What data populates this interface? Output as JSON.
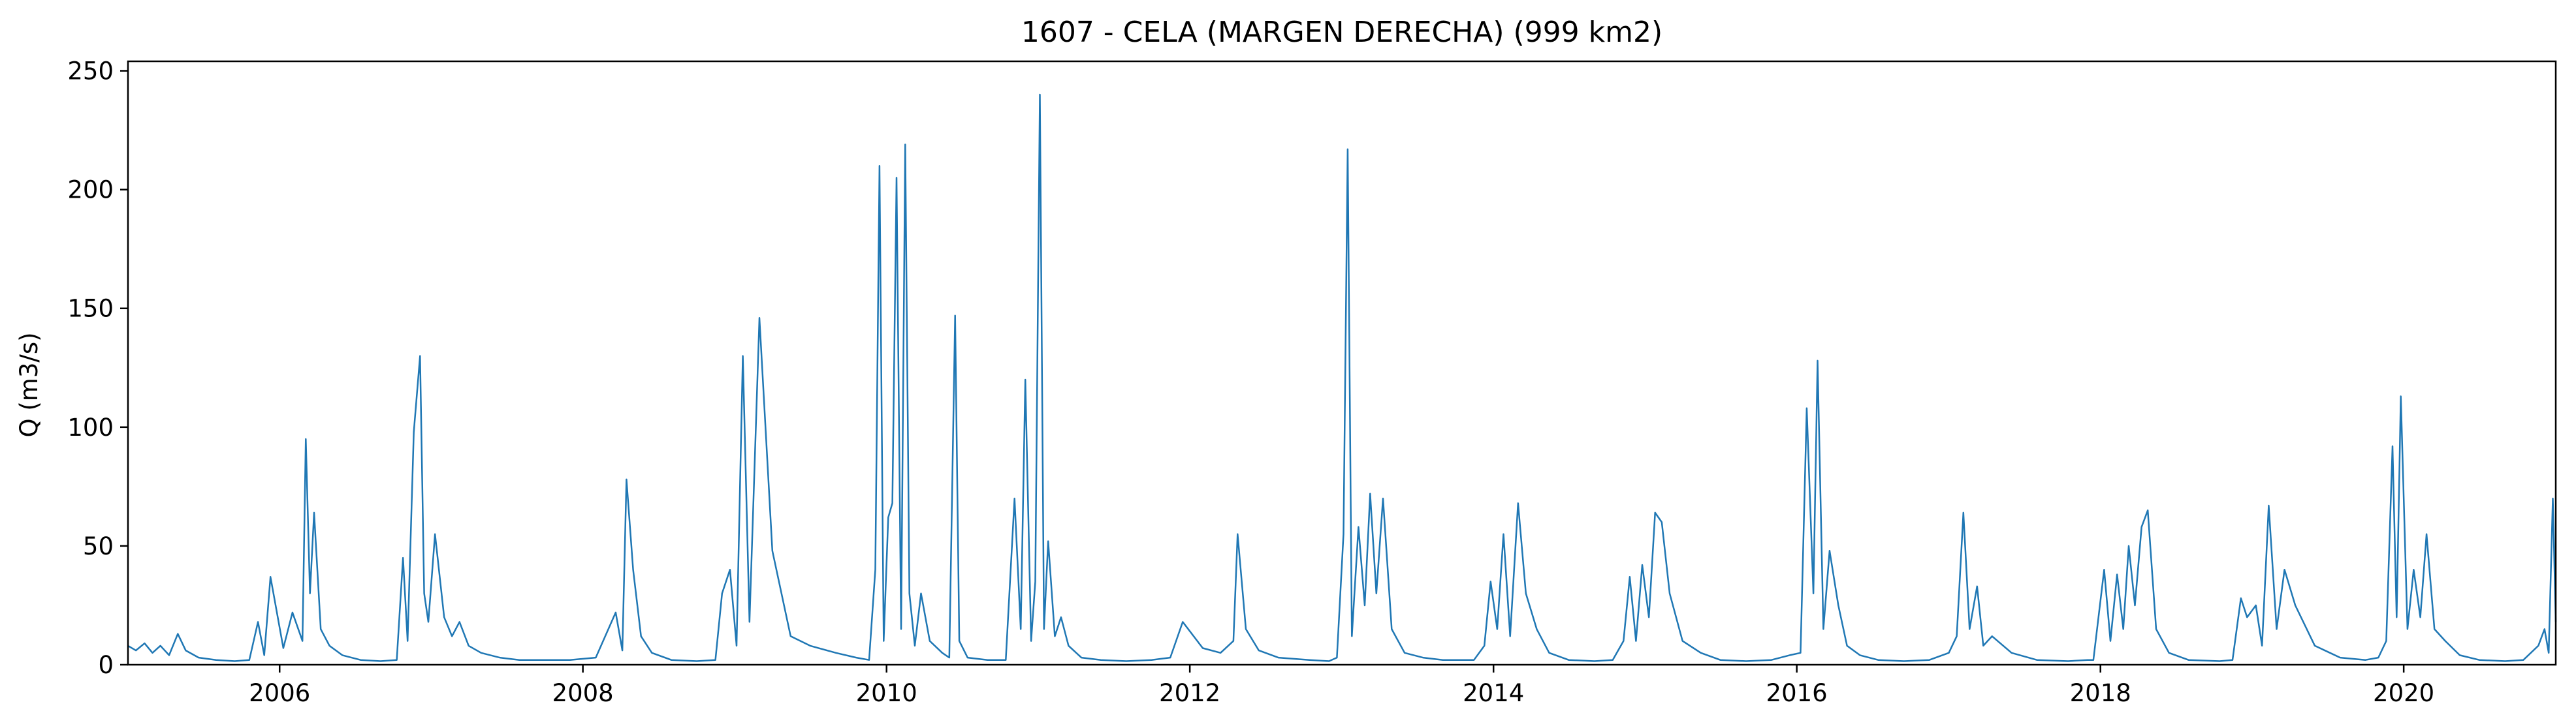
{
  "chart_data": {
    "type": "line",
    "title": "1607 - CELA (MARGEN DERECHA) (999 km2)",
    "xlabel": "",
    "ylabel": "Q (m3/s)",
    "xlim": [
      "2005-01-01",
      "2021-01-01"
    ],
    "ylim": [
      0,
      254
    ],
    "x_ticks": [
      "2006",
      "2008",
      "2010",
      "2012",
      "2014",
      "2016",
      "2018",
      "2020"
    ],
    "y_ticks": [
      "0",
      "50",
      "100",
      "150",
      "200",
      "250"
    ],
    "grid": false,
    "legend": "none",
    "color": "#1f77b4",
    "series": [
      {
        "x": [
          "2005-01-01",
          "2005-01-20",
          "2005-02-10",
          "2005-03-01",
          "2005-03-20",
          "2005-04-10",
          "2005-05-01",
          "2005-05-20",
          "2005-06-20",
          "2005-08-01",
          "2005-09-15",
          "2005-10-20",
          "2005-11-10",
          "2005-11-25",
          "2005-12-10",
          "2006-01-10",
          "2006-02-01",
          "2006-02-25",
          "2006-03-05",
          "2006-03-15",
          "2006-03-25",
          "2006-04-10",
          "2006-05-01",
          "2006-06-01",
          "2006-07-15",
          "2006-09-01",
          "2006-10-10",
          "2006-10-25",
          "2006-11-05",
          "2006-11-20",
          "2006-12-05",
          "2006-12-15",
          "2006-12-25",
          "2007-01-10",
          "2007-02-01",
          "2007-02-20",
          "2007-03-10",
          "2007-04-01",
          "2007-05-01",
          "2007-06-15",
          "2007-08-01",
          "2007-10-01",
          "2007-12-01",
          "2008-02-01",
          "2008-03-20",
          "2008-04-05",
          "2008-04-15",
          "2008-05-01",
          "2008-05-20",
          "2008-06-15",
          "2008-08-01",
          "2008-10-01",
          "2008-11-15",
          "2008-12-01",
          "2008-12-20",
          "2009-01-05",
          "2009-01-20",
          "2009-02-05",
          "2009-03-01",
          "2009-04-01",
          "2009-05-15",
          "2009-07-01",
          "2009-09-01",
          "2009-10-20",
          "2009-11-20",
          "2009-12-05",
          "2009-12-15",
          "2009-12-25",
          "2010-01-05",
          "2010-01-15",
          "2010-01-25",
          "2010-02-05",
          "2010-02-15",
          "2010-02-25",
          "2010-03-10",
          "2010-03-25",
          "2010-04-15",
          "2010-05-15",
          "2010-06-01",
          "2010-06-15",
          "2010-06-25",
          "2010-07-15",
          "2010-09-01",
          "2010-10-15",
          "2010-11-05",
          "2010-11-20",
          "2010-12-01",
          "2010-12-15",
          "2010-12-25",
          "2011-01-05",
          "2011-01-15",
          "2011-01-25",
          "2011-02-10",
          "2011-02-25",
          "2011-03-15",
          "2011-04-15",
          "2011-06-01",
          "2011-08-01",
          "2011-10-01",
          "2011-11-15",
          "2011-12-15",
          "2012-02-01",
          "2012-03-15",
          "2012-04-15",
          "2012-04-25",
          "2012-05-15",
          "2012-06-15",
          "2012-08-01",
          "2012-10-15",
          "2012-12-01",
          "2012-12-20",
          "2013-01-05",
          "2013-01-15",
          "2013-01-25",
          "2013-02-10",
          "2013-02-25",
          "2013-03-10",
          "2013-03-25",
          "2013-04-10",
          "2013-05-01",
          "2013-06-01",
          "2013-07-15",
          "2013-09-01",
          "2013-10-15",
          "2013-11-15",
          "2013-12-10",
          "2013-12-25",
          "2014-01-10",
          "2014-01-25",
          "2014-02-10",
          "2014-03-01",
          "2014-03-20",
          "2014-04-15",
          "2014-05-15",
          "2014-07-01",
          "2014-09-01",
          "2014-10-15",
          "2014-11-10",
          "2014-11-25",
          "2014-12-10",
          "2014-12-25",
          "2015-01-10",
          "2015-01-25",
          "2015-02-10",
          "2015-03-01",
          "2015-04-01",
          "2015-05-15",
          "2015-07-01",
          "2015-09-01",
          "2015-11-01",
          "2015-12-15",
          "2016-01-10",
          "2016-01-25",
          "2016-02-10",
          "2016-02-20",
          "2016-03-05",
          "2016-03-20",
          "2016-04-10",
          "2016-05-01",
          "2016-06-01",
          "2016-07-15",
          "2016-09-15",
          "2016-11-15",
          "2017-01-01",
          "2017-01-20",
          "2017-02-05",
          "2017-02-20",
          "2017-03-10",
          "2017-03-25",
          "2017-04-15",
          "2017-06-01",
          "2017-08-01",
          "2017-10-15",
          "2017-12-01",
          "2017-12-15",
          "2018-01-10",
          "2018-01-25",
          "2018-02-10",
          "2018-02-25",
          "2018-03-10",
          "2018-03-25",
          "2018-04-10",
          "2018-04-25",
          "2018-05-15",
          "2018-06-15",
          "2018-08-01",
          "2018-10-15",
          "2018-11-15",
          "2018-12-05",
          "2018-12-20",
          "2019-01-10",
          "2019-01-25",
          "2019-02-10",
          "2019-03-01",
          "2019-03-20",
          "2019-04-15",
          "2019-06-01",
          "2019-08-01",
          "2019-10-01",
          "2019-11-01",
          "2019-11-20",
          "2019-12-05",
          "2019-12-15",
          "2019-12-25",
          "2020-01-10",
          "2020-01-25",
          "2020-02-10",
          "2020-02-25",
          "2020-03-15",
          "2020-04-10",
          "2020-05-15",
          "2020-07-01",
          "2020-09-01",
          "2020-10-15",
          "2020-11-20",
          "2020-12-05",
          "2020-12-15",
          "2020-12-25",
          "2021-01-01"
        ],
        "y": [
          8,
          6,
          9,
          5,
          8,
          4,
          13,
          6,
          3,
          2,
          1.5,
          2,
          18,
          4,
          37,
          7,
          22,
          10,
          95,
          30,
          64,
          15,
          8,
          4,
          2,
          1.5,
          2,
          45,
          10,
          98,
          130,
          30,
          18,
          55,
          20,
          12,
          18,
          8,
          5,
          3,
          2,
          2,
          2,
          3,
          22,
          6,
          78,
          40,
          12,
          5,
          2,
          1.5,
          2,
          30,
          40,
          8,
          130,
          18,
          146,
          48,
          12,
          8,
          5,
          3,
          2,
          40,
          210,
          10,
          62,
          68,
          205,
          15,
          219,
          30,
          8,
          30,
          10,
          5,
          3,
          147,
          10,
          3,
          2,
          2,
          70,
          15,
          120,
          10,
          35,
          240,
          15,
          52,
          12,
          20,
          8,
          3,
          2,
          1.5,
          2,
          3,
          18,
          7,
          5,
          10,
          55,
          15,
          6,
          3,
          2,
          1.5,
          3,
          55,
          217,
          12,
          58,
          25,
          72,
          30,
          70,
          15,
          5,
          3,
          2,
          2,
          2,
          8,
          35,
          15,
          55,
          12,
          68,
          30,
          15,
          5,
          2,
          1.5,
          2,
          10,
          37,
          10,
          42,
          20,
          64,
          60,
          30,
          10,
          5,
          2,
          1.5,
          2,
          4,
          5,
          108,
          30,
          128,
          15,
          48,
          25,
          8,
          4,
          2,
          1.5,
          2,
          5,
          12,
          64,
          15,
          33,
          8,
          12,
          5,
          2,
          1.5,
          2,
          2,
          40,
          10,
          38,
          15,
          50,
          25,
          58,
          65,
          15,
          5,
          2,
          1.5,
          2,
          28,
          20,
          25,
          8,
          67,
          15,
          40,
          25,
          8,
          3,
          2,
          3,
          10,
          92,
          20,
          113,
          15,
          40,
          20,
          55,
          15,
          10,
          4,
          2,
          1.5,
          2,
          8,
          15,
          5,
          70,
          18
        ]
      }
    ]
  }
}
